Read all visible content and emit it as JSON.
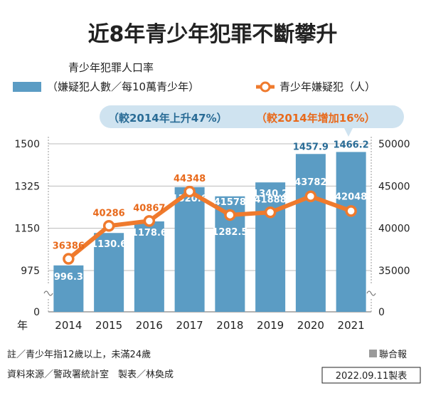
{
  "title": "近8年青少年犯罪不斷攀升",
  "legend": {
    "bar_line1": "青少年犯罪人口率",
    "bar_line2": "（嫌疑犯人數／每10萬青少年）",
    "line": "青少年嫌疑犯（人）"
  },
  "annotations": {
    "bar_change": "（較2014年上升47%）",
    "line_change": "（較2014年增加16%）"
  },
  "footer": {
    "note": "註／青少年指12歲以上，未滿24歲",
    "source": "資料來源／警政署統計室　製表／林奐成",
    "publisher": "聯合報",
    "date_label": "2022.09.11製表"
  },
  "colors": {
    "bar": "#5b9cc4",
    "bar_label": "#2a6c96",
    "line": "#ef7a2d",
    "line_label_orange": "#e86a1c",
    "line_label_light": "#ffffff",
    "banner_bg": "#cfe3f0",
    "grid": "#bbbbbb",
    "text": "#222222"
  },
  "chart_data": {
    "type": "bar+line",
    "categories": [
      "2014",
      "2015",
      "2016",
      "2017",
      "2018",
      "2019",
      "2020",
      "2021"
    ],
    "x_prefix": "年",
    "bars": {
      "name": "青少年犯罪人口率（嫌疑犯人數／每10萬青少年）",
      "values": [
        996.3,
        1130.6,
        1178.6,
        1320.6,
        1282.5,
        1340.2,
        1457.9,
        1466.2
      ],
      "labels": [
        "996.3",
        "1130.6",
        "1178.6",
        "1320.6",
        "1282.5",
        "1340.2",
        "1457.9",
        "1466.2"
      ]
    },
    "line": {
      "name": "青少年嫌疑犯（人）",
      "values": [
        36386,
        40286,
        40867,
        44348,
        41578,
        41888,
        43782,
        42048
      ],
      "labels": [
        "36386",
        "40286",
        "40867",
        "44348",
        "41578",
        "41888",
        "43782",
        "42048"
      ]
    },
    "left_axis": {
      "ticks": [
        975,
        1150,
        1325,
        1500
      ],
      "tick_labels": [
        "975",
        "1150",
        "1325",
        "1500"
      ],
      "zero_label": "0",
      "broken": true
    },
    "right_axis": {
      "ticks": [
        35000,
        40000,
        45000,
        50000
      ],
      "tick_labels": [
        "35000",
        "40000",
        "45000",
        "50000"
      ],
      "zero_label": "0",
      "broken": true
    },
    "grid": true
  }
}
